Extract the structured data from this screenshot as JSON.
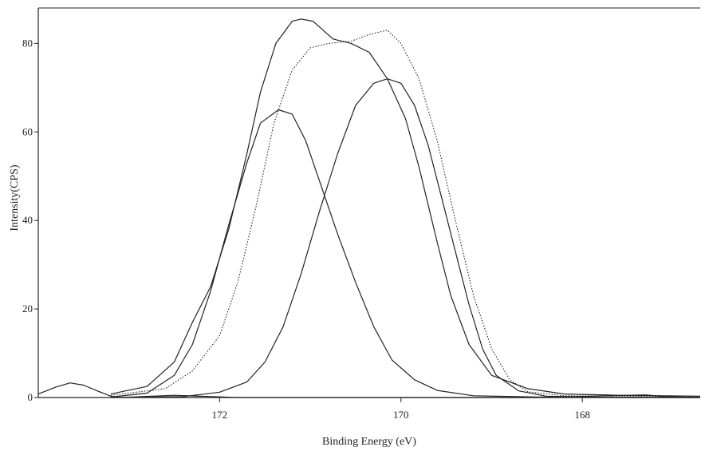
{
  "chart_data": {
    "type": "line",
    "xlabel": "Binding Energy (eV)",
    "ylabel": "Intensity(CPS)",
    "x_reversed": true,
    "xlim": [
      174.0,
      166.7
    ],
    "ylim": [
      0,
      88
    ],
    "x_ticks": [
      172,
      170,
      168
    ],
    "x_tick_labels": [
      "172",
      "170",
      "168"
    ],
    "y_ticks": [
      0,
      20,
      40,
      60,
      80
    ],
    "y_tick_labels": [
      "0",
      "20",
      "40",
      "60",
      "80"
    ],
    "grid": false,
    "legend": "none",
    "series": [
      {
        "style": "dotted",
        "points": [
          [
            173.2,
            0.5
          ],
          [
            172.6,
            2
          ],
          [
            172.3,
            6
          ],
          [
            172.0,
            14
          ],
          [
            171.8,
            26
          ],
          [
            171.6,
            43
          ],
          [
            171.4,
            62
          ],
          [
            171.2,
            74
          ],
          [
            171.0,
            79
          ],
          [
            170.8,
            80
          ],
          [
            170.55,
            80.5
          ],
          [
            170.35,
            82
          ],
          [
            170.15,
            83
          ],
          [
            170.0,
            80
          ],
          [
            169.8,
            72
          ],
          [
            169.6,
            58
          ],
          [
            169.4,
            40
          ],
          [
            169.2,
            23
          ],
          [
            169.0,
            11
          ],
          [
            168.8,
            4
          ],
          [
            168.6,
            1.3
          ],
          [
            168.2,
            0.4
          ],
          [
            167.5,
            0.3
          ],
          [
            166.7,
            0.2
          ]
        ]
      },
      {
        "style": "solid",
        "points": [
          [
            173.2,
            0.8
          ],
          [
            172.8,
            2.5
          ],
          [
            172.5,
            8
          ],
          [
            172.3,
            17
          ],
          [
            172.1,
            25
          ],
          [
            171.9,
            38
          ],
          [
            171.7,
            55
          ],
          [
            171.55,
            69
          ],
          [
            171.38,
            80
          ],
          [
            171.2,
            85
          ],
          [
            171.1,
            85.5
          ],
          [
            170.97,
            85
          ],
          [
            170.75,
            81
          ],
          [
            170.55,
            80
          ],
          [
            170.35,
            78
          ],
          [
            170.15,
            72
          ],
          [
            169.95,
            63
          ],
          [
            169.8,
            52
          ],
          [
            169.6,
            35
          ],
          [
            169.45,
            23
          ],
          [
            169.25,
            12
          ],
          [
            169.0,
            5
          ],
          [
            168.6,
            2
          ],
          [
            168.2,
            0.8
          ],
          [
            167.6,
            0.5
          ],
          [
            166.7,
            0.3
          ]
        ]
      },
      {
        "style": "solid",
        "points": [
          [
            173.2,
            0.1
          ],
          [
            172.8,
            1
          ],
          [
            172.5,
            5
          ],
          [
            172.3,
            12
          ],
          [
            172.1,
            24
          ],
          [
            171.9,
            39
          ],
          [
            171.7,
            53
          ],
          [
            171.55,
            62
          ],
          [
            171.35,
            65
          ],
          [
            171.2,
            64
          ],
          [
            171.05,
            58
          ],
          [
            170.9,
            49
          ],
          [
            170.7,
            37
          ],
          [
            170.5,
            26
          ],
          [
            170.3,
            16
          ],
          [
            170.1,
            8.5
          ],
          [
            169.85,
            4
          ],
          [
            169.6,
            1.6
          ],
          [
            169.2,
            0.4
          ],
          [
            168.5,
            0.1
          ],
          [
            166.7,
            0
          ]
        ]
      },
      {
        "style": "solid",
        "points": [
          [
            173.2,
            0
          ],
          [
            172.4,
            0.2
          ],
          [
            172.0,
            1.2
          ],
          [
            171.7,
            3.5
          ],
          [
            171.5,
            8
          ],
          [
            171.3,
            16
          ],
          [
            171.1,
            28
          ],
          [
            170.9,
            42
          ],
          [
            170.7,
            55
          ],
          [
            170.5,
            66
          ],
          [
            170.3,
            71
          ],
          [
            170.15,
            72
          ],
          [
            170.0,
            71
          ],
          [
            169.85,
            66
          ],
          [
            169.7,
            57
          ],
          [
            169.55,
            45
          ],
          [
            169.4,
            33
          ],
          [
            169.25,
            21
          ],
          [
            169.1,
            11
          ],
          [
            168.95,
            5
          ],
          [
            168.7,
            1.5
          ],
          [
            168.4,
            0.3
          ],
          [
            167.6,
            0
          ],
          [
            166.7,
            0
          ]
        ]
      },
      {
        "style": "solid",
        "points": [
          [
            174.0,
            0.8
          ],
          [
            173.8,
            2.4
          ],
          [
            173.65,
            3.3
          ],
          [
            173.5,
            2.8
          ],
          [
            173.35,
            1.5
          ],
          [
            173.2,
            0.3
          ],
          [
            173.1,
            0
          ],
          [
            172.5,
            0.5
          ],
          [
            171.8,
            0
          ],
          [
            170.5,
            0
          ],
          [
            169.5,
            0
          ],
          [
            168.5,
            0
          ],
          [
            167.5,
            0.5
          ],
          [
            167.3,
            0.6
          ],
          [
            167.1,
            0.2
          ],
          [
            166.7,
            0
          ]
        ]
      }
    ]
  }
}
